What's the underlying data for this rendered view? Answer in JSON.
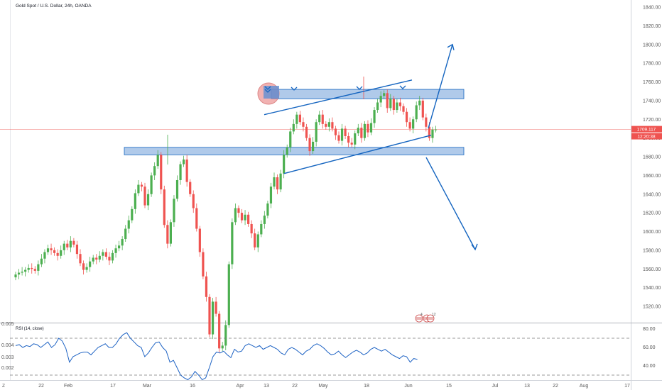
{
  "header": {
    "title": "Gold Spot / U.S. Dollar, 24h, OANDA"
  },
  "price_badge": {
    "price": "1709.117",
    "countdown": "12:20:38"
  },
  "rsi": {
    "label": "RSI (14, close)",
    "left_ticks": [
      "0.005",
      "0.004",
      "0.003",
      "0.002"
    ],
    "right_ticks": [
      "80.00",
      "60.00",
      "40.00"
    ]
  },
  "markers": {
    "event_counts": [
      "4",
      "12"
    ]
  },
  "corner_label": "Z",
  "colors": {
    "bull": "#4caf50",
    "bear": "#ef5350",
    "drawing": "#1565c0",
    "zone_fill": "#6f9fd8",
    "price_line": "#ef5350",
    "rsi_line": "#1e63c4"
  },
  "chart_data": {
    "type": "candlestick",
    "title": "Gold Spot / U.S. Dollar, 24h, OANDA",
    "y_ticks": [
      1840,
      1820,
      1800,
      1780,
      1760,
      1740,
      1720,
      1700,
      1680,
      1660,
      1640,
      1620,
      1600,
      1580,
      1560,
      1540,
      1520
    ],
    "ylim": [
      1505,
      1850
    ],
    "x_ticks": [
      "22",
      "Feb",
      "17",
      "Mar",
      "16",
      "Apr",
      "13",
      "22",
      "May",
      "18",
      "Jun",
      "15",
      "Jul",
      "13",
      "22",
      "Aug",
      "17"
    ],
    "last_price": 1709.117,
    "closes": [
      1554,
      1556,
      1557,
      1559,
      1561,
      1560,
      1558,
      1565,
      1571,
      1578,
      1582,
      1580,
      1577,
      1574,
      1580,
      1587,
      1583,
      1590,
      1586,
      1576,
      1566,
      1559,
      1562,
      1568,
      1572,
      1570,
      1574,
      1578,
      1573,
      1569,
      1577,
      1582,
      1585,
      1592,
      1603,
      1612,
      1624,
      1641,
      1650,
      1648,
      1628,
      1640,
      1660,
      1670,
      1682,
      1645,
      1607,
      1587,
      1610,
      1635,
      1655,
      1672,
      1677,
      1653,
      1640,
      1625,
      1603,
      1578,
      1552,
      1530,
      1490,
      1525,
      1512,
      1475,
      1478,
      1500,
      1565,
      1610,
      1625,
      1620,
      1612,
      1618,
      1608,
      1598,
      1583,
      1597,
      1608,
      1617,
      1630,
      1648,
      1658,
      1645,
      1662,
      1682,
      1690,
      1707,
      1715,
      1725,
      1717,
      1712,
      1700,
      1686,
      1696,
      1717,
      1725,
      1715,
      1712,
      1717,
      1710,
      1703,
      1697,
      1710,
      1702,
      1695,
      1693,
      1705,
      1711,
      1700,
      1715,
      1706,
      1716,
      1730,
      1738,
      1745,
      1748,
      1732,
      1742,
      1730,
      1738,
      1734,
      1728,
      1717,
      1710,
      1720,
      1735,
      1740,
      1722,
      1712,
      1700,
      1709,
      1709.117
    ],
    "zones": [
      {
        "y_low": 1742,
        "y_high": 1752
      },
      {
        "y_low": 1682,
        "y_high": 1690
      }
    ],
    "channel_lines": [
      {
        "from": [
          1725
        ],
        "to": [
          1762
        ]
      },
      {
        "from": [
          1662
        ],
        "to": [
          1703
        ]
      }
    ],
    "projections": [
      {
        "direction": "up",
        "target": 1800
      },
      {
        "direction": "down",
        "target": 1580
      }
    ],
    "rsi_values": [
      62,
      63,
      60,
      62,
      61,
      64,
      63,
      60,
      63,
      66,
      60,
      63,
      70,
      67,
      59,
      44,
      50,
      52,
      54,
      55,
      55,
      52,
      56,
      60,
      62,
      64,
      60,
      60,
      64,
      70,
      74,
      76,
      70,
      66,
      62,
      60,
      50,
      54,
      60,
      65,
      66,
      60,
      56,
      44,
      46,
      38,
      30,
      27,
      25,
      28,
      34,
      30,
      25,
      27,
      38,
      50,
      55,
      54,
      56,
      52,
      49,
      58,
      55,
      56,
      62,
      64,
      62,
      60,
      62,
      58,
      60,
      62,
      60,
      58,
      54,
      52,
      58,
      60,
      58,
      55,
      52,
      56,
      58,
      62,
      64,
      62,
      59,
      55,
      52,
      53,
      56,
      52,
      49,
      52,
      55,
      57,
      55,
      52,
      54,
      58,
      60,
      58,
      56,
      58,
      55,
      52,
      50,
      48,
      51,
      50,
      44,
      48,
      47
    ],
    "rsi_levels": [
      70,
      30
    ],
    "rsi_ylim": [
      20,
      85
    ]
  }
}
